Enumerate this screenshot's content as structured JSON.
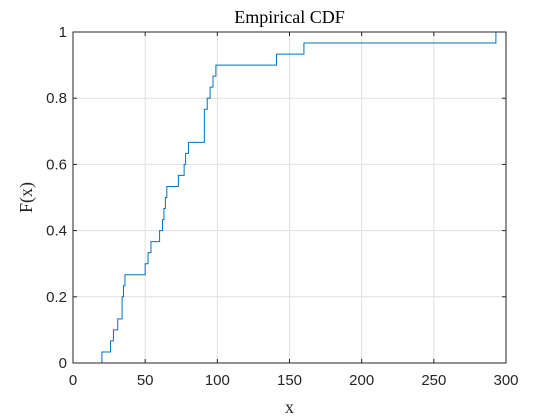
{
  "chart_data": {
    "type": "line",
    "step": true,
    "title": "Empirical CDF",
    "xlabel": "x",
    "ylabel": "F(x)",
    "xlim": [
      0,
      300
    ],
    "ylim": [
      0,
      1
    ],
    "xticks": [
      0,
      50,
      100,
      150,
      200,
      250,
      300
    ],
    "yticks": [
      0,
      0.2,
      0.4,
      0.6,
      0.8,
      1
    ],
    "xtick_labels": [
      "0",
      "50",
      "100",
      "150",
      "200",
      "250",
      "300"
    ],
    "ytick_labels": [
      "0",
      "0.2",
      "0.4",
      "0.6",
      "0.8",
      "1"
    ],
    "grid": true,
    "box": true,
    "line_color": "#0072BD",
    "series": [
      {
        "x": [
          18,
          20,
          24,
          26,
          28,
          31,
          34,
          35,
          36,
          37,
          37,
          50,
          52,
          54,
          56,
          60,
          62,
          63,
          64,
          65,
          66,
          67,
          73,
          77,
          78,
          80,
          80,
          91,
          92,
          93,
          95,
          96,
          97,
          99,
          141,
          160,
          293
        ],
        "y": [
          0,
          0.0333,
          0.0333,
          0.0667,
          0.1,
          0.1333,
          0.2,
          0.2333,
          0.2667,
          0.2667,
          0.2667,
          0.3,
          0.3333,
          0.3667,
          0.3667,
          0.4,
          0.4333,
          0.4667,
          0.5,
          0.5333,
          0.5333,
          0.5333,
          0.5667,
          0.6,
          0.6333,
          0.6667,
          0.6667,
          0.7667,
          0.7667,
          0.8,
          0.8333,
          0.8333,
          0.8667,
          0.9,
          0.9333,
          0.9667,
          1.0
        ]
      }
    ]
  }
}
